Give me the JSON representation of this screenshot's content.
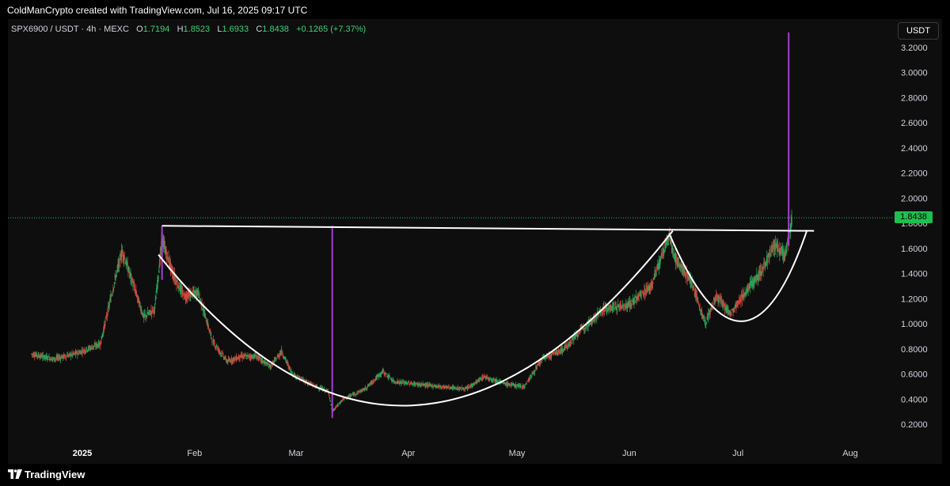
{
  "header": {
    "text": "ColdManCrypto created with TradingView.com, Jul 16, 2025 09:17 UTC"
  },
  "legend": {
    "symbol": "SPX6900 / USDT · 4h · MEXC",
    "open_label": "O",
    "open": "1.7194",
    "high_label": "H",
    "high": "1.8523",
    "low_label": "L",
    "low": "1.6933",
    "close_label": "C",
    "close": "1.8438",
    "change": "+0.1265 (+7.37%)"
  },
  "currency_button": "USDT",
  "price_tag": "1.8438",
  "footer": {
    "brand": "TradingView"
  },
  "colors": {
    "up": "#26a65b",
    "up_bright": "#3fd07a",
    "down": "#d0463c",
    "spike": "#a23fd1",
    "pattern": "#ffffff",
    "price_line": "#22c55e"
  },
  "chart_data": {
    "type": "candlestick",
    "symbol": "SPX6900 / USDT",
    "interval": "4h",
    "exchange": "MEXC",
    "last_price": 1.8438,
    "y_ticks": [
      "3.2000",
      "3.0000",
      "2.8000",
      "2.6000",
      "2.4000",
      "2.2000",
      "2.0000",
      "1.8000",
      "1.6000",
      "1.4000",
      "1.2000",
      "1.0000",
      "0.8000",
      "0.6000",
      "0.4000",
      "0.2000"
    ],
    "x_ticks": [
      {
        "label": "2025",
        "bold": true,
        "date": "2025-01-01"
      },
      {
        "label": "Feb",
        "date": "2025-02-01"
      },
      {
        "label": "Mar",
        "date": "2025-03-01"
      },
      {
        "label": "Apr",
        "date": "2025-04-01"
      },
      {
        "label": "May",
        "date": "2025-05-01"
      },
      {
        "label": "Jun",
        "date": "2025-06-01"
      },
      {
        "label": "Jul",
        "date": "2025-07-01"
      },
      {
        "label": "Aug",
        "date": "2025-08-01"
      }
    ],
    "price_path": [
      [
        "2024-12-18",
        0.76
      ],
      [
        "2024-12-24",
        0.72
      ],
      [
        "2024-12-30",
        0.76
      ],
      [
        "2025-01-06",
        0.84
      ],
      [
        "2025-01-10",
        1.35
      ],
      [
        "2025-01-12",
        1.58
      ],
      [
        "2025-01-15",
        1.32
      ],
      [
        "2025-01-18",
        1.05
      ],
      [
        "2025-01-21",
        1.12
      ],
      [
        "2025-01-23",
        1.67
      ],
      [
        "2025-01-26",
        1.4
      ],
      [
        "2025-01-29",
        1.22
      ],
      [
        "2025-02-02",
        1.25
      ],
      [
        "2025-02-06",
        0.86
      ],
      [
        "2025-02-10",
        0.7
      ],
      [
        "2025-02-14",
        0.74
      ],
      [
        "2025-02-18",
        0.74
      ],
      [
        "2025-02-22",
        0.66
      ],
      [
        "2025-02-25",
        0.78
      ],
      [
        "2025-02-28",
        0.6
      ],
      [
        "2025-03-05",
        0.52
      ],
      [
        "2025-03-10",
        0.46
      ],
      [
        "2025-03-11",
        0.3
      ],
      [
        "2025-03-14",
        0.4
      ],
      [
        "2025-03-20",
        0.48
      ],
      [
        "2025-03-25",
        0.62
      ],
      [
        "2025-03-28",
        0.54
      ],
      [
        "2025-04-03",
        0.52
      ],
      [
        "2025-04-10",
        0.5
      ],
      [
        "2025-04-17",
        0.48
      ],
      [
        "2025-04-22",
        0.58
      ],
      [
        "2025-04-28",
        0.52
      ],
      [
        "2025-05-03",
        0.5
      ],
      [
        "2025-05-08",
        0.72
      ],
      [
        "2025-05-14",
        0.8
      ],
      [
        "2025-05-19",
        0.96
      ],
      [
        "2025-05-25",
        1.12
      ],
      [
        "2025-06-01",
        1.15
      ],
      [
        "2025-06-07",
        1.3
      ],
      [
        "2025-06-12",
        1.7
      ],
      [
        "2025-06-14",
        1.5
      ],
      [
        "2025-06-18",
        1.35
      ],
      [
        "2025-06-22",
        1.0
      ],
      [
        "2025-06-25",
        1.22
      ],
      [
        "2025-06-29",
        1.08
      ],
      [
        "2025-07-03",
        1.25
      ],
      [
        "2025-07-07",
        1.4
      ],
      [
        "2025-07-11",
        1.62
      ],
      [
        "2025-07-14",
        1.55
      ],
      [
        "2025-07-16",
        1.84
      ]
    ],
    "spikes": [
      {
        "date": "2025-01-23",
        "low": 1.35,
        "high": 1.78
      },
      {
        "date": "2025-03-11",
        "low": 0.25,
        "high": 1.78
      },
      {
        "date": "2025-07-15",
        "low": 1.62,
        "high": 3.32
      }
    ],
    "overlays": {
      "resistance_line": {
        "from": [
          "2025-01-23",
          1.78
        ],
        "to": [
          "2025-07-22",
          1.74
        ]
      },
      "cup_arc": {
        "start": [
          "2025-01-22",
          1.55
        ],
        "bottom": [
          "2025-04-02",
          0.35
        ],
        "end": [
          "2025-06-13",
          1.74
        ]
      },
      "handle_arc": {
        "start": [
          "2025-06-12",
          1.72
        ],
        "bottom": [
          "2025-07-02",
          1.02
        ],
        "end": [
          "2025-07-20",
          1.74
        ]
      }
    }
  }
}
